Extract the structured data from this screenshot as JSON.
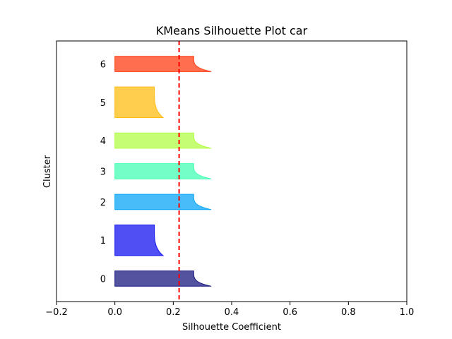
{
  "chart_data": {
    "type": "silhouette",
    "title": "KMeans Silhouette Plot car",
    "xlabel": "Silhouette Coefficient",
    "ylabel": "Cluster",
    "xlim": [
      -0.2,
      1.0
    ],
    "xticks": [
      -0.2,
      0.0,
      0.2,
      0.4,
      0.6,
      0.8,
      1.0
    ],
    "xtick_labels": [
      "−0.2",
      "0.0",
      "0.2",
      "0.4",
      "0.6",
      "0.8",
      "1.0"
    ],
    "average_silhouette": 0.22,
    "average_line_color": "#ff0000",
    "grid": false,
    "clusters": [
      {
        "label": "0",
        "size": 10,
        "max": 0.33,
        "min": 0.27,
        "color": "#1a1a80"
      },
      {
        "label": "1",
        "size": 20,
        "max": 0.165,
        "min": 0.135,
        "color": "#1414ef"
      },
      {
        "label": "2",
        "size": 10,
        "max": 0.33,
        "min": 0.27,
        "color": "#0aa6f5"
      },
      {
        "label": "3",
        "size": 10,
        "max": 0.33,
        "min": 0.27,
        "color": "#45fdb4"
      },
      {
        "label": "4",
        "size": 10,
        "max": 0.33,
        "min": 0.27,
        "color": "#b2fd45"
      },
      {
        "label": "5",
        "size": 20,
        "max": 0.165,
        "min": 0.135,
        "color": "#ffbe14"
      },
      {
        "label": "6",
        "size": 10,
        "max": 0.33,
        "min": 0.27,
        "color": "#ff3d14"
      }
    ]
  }
}
